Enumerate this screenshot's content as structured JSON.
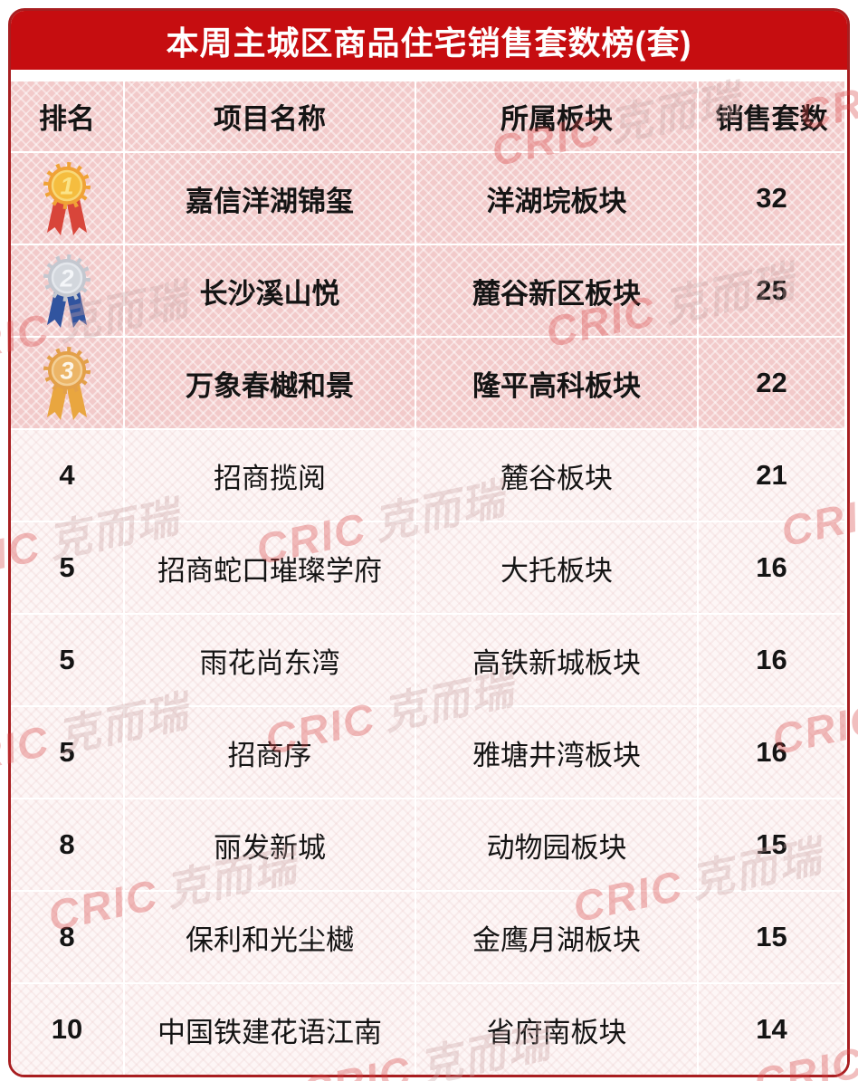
{
  "title": "本周主城区商品住宅销售套数榜(套)",
  "watermark": {
    "latin": "CRIC",
    "cjk": "克而瑞"
  },
  "colors": {
    "title_bar_bg": "#c60d10",
    "board_border": "#a81e20",
    "header_row_bg": "#f2caca",
    "top3_row_bg": "#f2caca",
    "normal_row_bg": "#fdf6f6",
    "watermark_red": "#d84343",
    "medals": {
      "gold": {
        "main": "#f0a236",
        "inner": "#f5bd3f",
        "ring": "#f8d878",
        "num": "#fbe489",
        "ribbon": "#d8453a"
      },
      "silver": {
        "main": "#c4c8d0",
        "inner": "#d3d7dd",
        "ring": "#e4e7ec",
        "num": "#f4f6f9",
        "ribbon": "#31549f"
      },
      "bronze": {
        "main": "#e3a049",
        "inner": "#ecb567",
        "ring": "#f3cf96",
        "num": "#fdf6e8",
        "ribbon": "#e9a63f"
      }
    }
  },
  "table": {
    "headers": [
      "排名",
      "项目名称",
      "所属板块",
      "销售套数"
    ],
    "rows": [
      {
        "rank": "1",
        "medal": "gold",
        "name": "嘉信洋湖锦玺",
        "block": "洋湖垸板块",
        "count": "32",
        "highlight": true
      },
      {
        "rank": "2",
        "medal": "silver",
        "name": "长沙溪山悦",
        "block": "麓谷新区板块",
        "count": "25",
        "highlight": true
      },
      {
        "rank": "3",
        "medal": "bronze",
        "name": "万象春樾和景",
        "block": "隆平高科板块",
        "count": "22",
        "highlight": true
      },
      {
        "rank": "4",
        "medal": null,
        "name": "招商揽阅",
        "block": "麓谷板块",
        "count": "21",
        "highlight": false
      },
      {
        "rank": "5",
        "medal": null,
        "name": "招商蛇口璀璨学府",
        "block": "大托板块",
        "count": "16",
        "highlight": false
      },
      {
        "rank": "5",
        "medal": null,
        "name": "雨花尚东湾",
        "block": "高铁新城板块",
        "count": "16",
        "highlight": false
      },
      {
        "rank": "5",
        "medal": null,
        "name": "招商序",
        "block": "雅塘井湾板块",
        "count": "16",
        "highlight": false
      },
      {
        "rank": "8",
        "medal": null,
        "name": "丽发新城",
        "block": "动物园板块",
        "count": "15",
        "highlight": false
      },
      {
        "rank": "8",
        "medal": null,
        "name": "保利和光尘樾",
        "block": "金鹰月湖板块",
        "count": "15",
        "highlight": false
      },
      {
        "rank": "10",
        "medal": null,
        "name": "中国铁建花语江南",
        "block": "省府南板块",
        "count": "14",
        "highlight": false
      }
    ]
  }
}
